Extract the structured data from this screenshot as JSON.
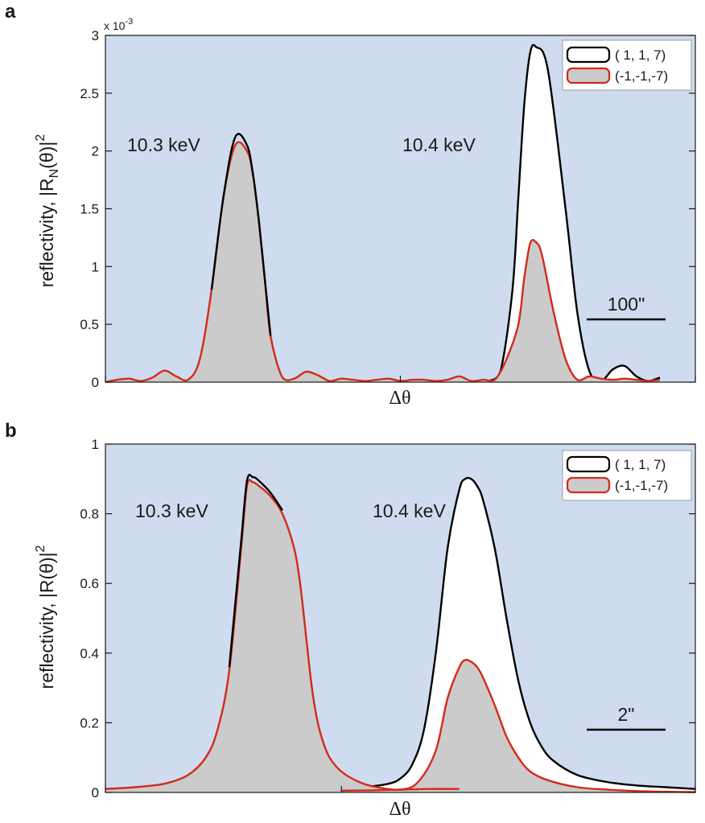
{
  "colors": {
    "plot_bg": "#cfdcef",
    "black_series": "#000000",
    "red_series": "#d42a1a",
    "white_fill": "#ffffff",
    "grey_fill": "#cbcbcb"
  },
  "chart_data": [
    {
      "panel": "a",
      "type": "area",
      "xlabel": "Δθ",
      "ylabel_main": "reflectivity, |R",
      "ylabel_sub": "N",
      "ylabel_tail": "(θ)|",
      "ylabel_sup": "2",
      "ylim": [
        0,
        0.003
      ],
      "xlim": [
        0,
        1
      ],
      "y_ticks": [
        {
          "v": 0,
          "label": "0"
        },
        {
          "v": 0.0005,
          "label": "0.5"
        },
        {
          "v": 0.001,
          "label": "1"
        },
        {
          "v": 0.0015,
          "label": "1.5"
        },
        {
          "v": 0.002,
          "label": "2"
        },
        {
          "v": 0.0025,
          "label": "2.5"
        },
        {
          "v": 0.003,
          "label": "3"
        }
      ],
      "exponent_prefix": "x 10",
      "exponent": "-3",
      "x_tick_positions": [
        0,
        0.5,
        1
      ],
      "legend": [
        "( 1, 1, 7)",
        "(-1,-1,-7)"
      ],
      "legend_placement": "top-right",
      "annotations": [
        "10.3 keV",
        "10.4 keV"
      ],
      "scale_bar_label": "100\"",
      "series": [
        {
          "name": "( 1, 1, 7)",
          "color": "#000000",
          "fill": "#ffffff",
          "x": [
            0.65,
            0.67,
            0.69,
            0.7,
            0.71,
            0.72,
            0.73,
            0.75,
            0.78,
            0.8,
            0.82,
            0.84,
            0.86,
            0.88,
            0.9,
            0.92,
            0.94
          ],
          "y": [
            1e-05,
            0.0001,
            0.0008,
            0.0016,
            0.0024,
            0.00285,
            0.0029,
            0.0027,
            0.0015,
            0.0006,
            0.0001,
            1e-05,
            0.00011,
            0.00014,
            5e-05,
            1e-05,
            4e-05
          ]
        },
        {
          "name": "(-1,-1,-7)",
          "color": "#d42a1a",
          "fill": "#cbcbcb",
          "x": [
            0.0,
            0.02,
            0.04,
            0.06,
            0.08,
            0.1,
            0.12,
            0.14,
            0.16,
            0.18,
            0.2,
            0.22,
            0.24,
            0.25,
            0.26,
            0.27,
            0.28,
            0.3,
            0.32,
            0.34,
            0.36,
            0.38,
            0.4,
            0.42,
            0.44,
            0.46,
            0.48,
            0.5,
            0.52,
            0.54,
            0.56,
            0.58,
            0.6,
            0.62,
            0.64,
            0.66,
            0.68,
            0.7,
            0.71,
            0.72,
            0.73,
            0.74,
            0.76,
            0.78,
            0.8,
            0.82,
            0.84,
            0.86,
            0.88,
            0.9,
            0.92,
            0.94
          ],
          "y": [
            0.0,
            2e-05,
            3e-05,
            1e-05,
            4e-05,
            0.0001,
            5e-05,
            2e-05,
            0.0002,
            0.0008,
            0.0016,
            0.00205,
            0.002,
            0.0018,
            0.0014,
            0.0009,
            0.0004,
            4e-05,
            3e-05,
            9e-05,
            6e-05,
            1e-05,
            3e-05,
            2e-05,
            1e-05,
            2e-05,
            3e-05,
            1e-05,
            2e-05,
            2e-05,
            1e-05,
            2e-05,
            5e-05,
            1e-05,
            2e-05,
            2e-05,
            0.0002,
            0.0005,
            0.0009,
            0.0012,
            0.00121,
            0.0011,
            0.0006,
            0.0002,
            2e-05,
            5e-05,
            3e-05,
            2e-05,
            3e-05,
            2e-05,
            1e-05,
            2e-05
          ]
        },
        {
          "name": "( 1, 1, 7) 10.3 keV",
          "color": "#000000",
          "fill": "none",
          "x": [
            0.18,
            0.2,
            0.22,
            0.24,
            0.25,
            0.26,
            0.27,
            0.28
          ],
          "y": [
            0.0008,
            0.0016,
            0.00212,
            0.00205,
            0.0018,
            0.0014,
            0.0009,
            0.0004
          ]
        }
      ]
    },
    {
      "panel": "b",
      "type": "area",
      "xlabel": "Δθ",
      "ylabel_main": "reflectivity, |R(θ)|",
      "ylabel_sup": "2",
      "ylim": [
        0,
        1
      ],
      "xlim": [
        0,
        1
      ],
      "y_ticks": [
        {
          "v": 0,
          "label": "0"
        },
        {
          "v": 0.2,
          "label": "0.2"
        },
        {
          "v": 0.4,
          "label": "0.4"
        },
        {
          "v": 0.6,
          "label": "0.6"
        },
        {
          "v": 0.8,
          "label": "0.8"
        },
        {
          "v": 1,
          "label": "1"
        }
      ],
      "x_tick_positions": [
        0,
        0.4,
        1
      ],
      "legend": [
        "( 1, 1, 7)",
        "(-1,-1,-7)"
      ],
      "legend_placement": "top-right",
      "annotations": [
        "10.3 keV",
        "10.4 keV"
      ],
      "scale_bar_label": "2\"",
      "series": [
        {
          "name": "( 1, 1, 7)",
          "color": "#000000",
          "fill": "#ffffff",
          "x": [
            0.4,
            0.44,
            0.48,
            0.5,
            0.52,
            0.54,
            0.56,
            0.58,
            0.6,
            0.61,
            0.62,
            0.63,
            0.64,
            0.66,
            0.68,
            0.7,
            0.72,
            0.74,
            0.76,
            0.8,
            0.85,
            0.9,
            0.95,
            1.0
          ],
          "y": [
            0.01,
            0.015,
            0.025,
            0.04,
            0.08,
            0.18,
            0.4,
            0.7,
            0.87,
            0.9,
            0.9,
            0.88,
            0.84,
            0.7,
            0.5,
            0.32,
            0.2,
            0.13,
            0.09,
            0.05,
            0.03,
            0.02,
            0.015,
            0.01
          ]
        },
        {
          "name": "(-1,-1,-7)",
          "color": "#d42a1a",
          "fill": "#cbcbcb",
          "x": [
            0.0,
            0.05,
            0.1,
            0.14,
            0.17,
            0.19,
            0.21,
            0.23,
            0.24,
            0.25,
            0.26,
            0.28,
            0.3,
            0.32,
            0.33,
            0.34,
            0.35,
            0.36,
            0.37,
            0.38,
            0.4,
            0.43,
            0.46,
            0.5,
            0.53,
            0.56,
            0.58,
            0.6,
            0.61,
            0.62,
            0.63,
            0.64,
            0.66,
            0.68,
            0.7,
            0.72,
            0.75,
            0.8,
            0.85,
            0.9,
            0.95,
            1.0
          ],
          "y": [
            0.01,
            0.015,
            0.025,
            0.05,
            0.1,
            0.18,
            0.35,
            0.7,
            0.88,
            0.89,
            0.88,
            0.85,
            0.8,
            0.7,
            0.6,
            0.45,
            0.3,
            0.2,
            0.14,
            0.1,
            0.06,
            0.03,
            0.015,
            0.008,
            0.03,
            0.12,
            0.27,
            0.36,
            0.38,
            0.375,
            0.36,
            0.33,
            0.25,
            0.16,
            0.1,
            0.06,
            0.035,
            0.015,
            0.008,
            0.004,
            0.002,
            0.001
          ]
        },
        {
          "name": "( 1, 1, 7) 10.3 keV",
          "color": "#000000",
          "fill": "none",
          "x": [
            0.21,
            0.23,
            0.24,
            0.25,
            0.26,
            0.28,
            0.3
          ],
          "y": [
            0.36,
            0.72,
            0.895,
            0.905,
            0.895,
            0.86,
            0.81
          ]
        },
        {
          "name": "(-1,-1,-7) 10.4 keV tail",
          "color": "#d42a1a",
          "fill": "none",
          "x": [
            0.4,
            0.45,
            0.5,
            0.55,
            0.6
          ],
          "y": [
            0.005,
            0.006,
            0.008,
            0.01,
            0.01
          ]
        }
      ]
    }
  ]
}
